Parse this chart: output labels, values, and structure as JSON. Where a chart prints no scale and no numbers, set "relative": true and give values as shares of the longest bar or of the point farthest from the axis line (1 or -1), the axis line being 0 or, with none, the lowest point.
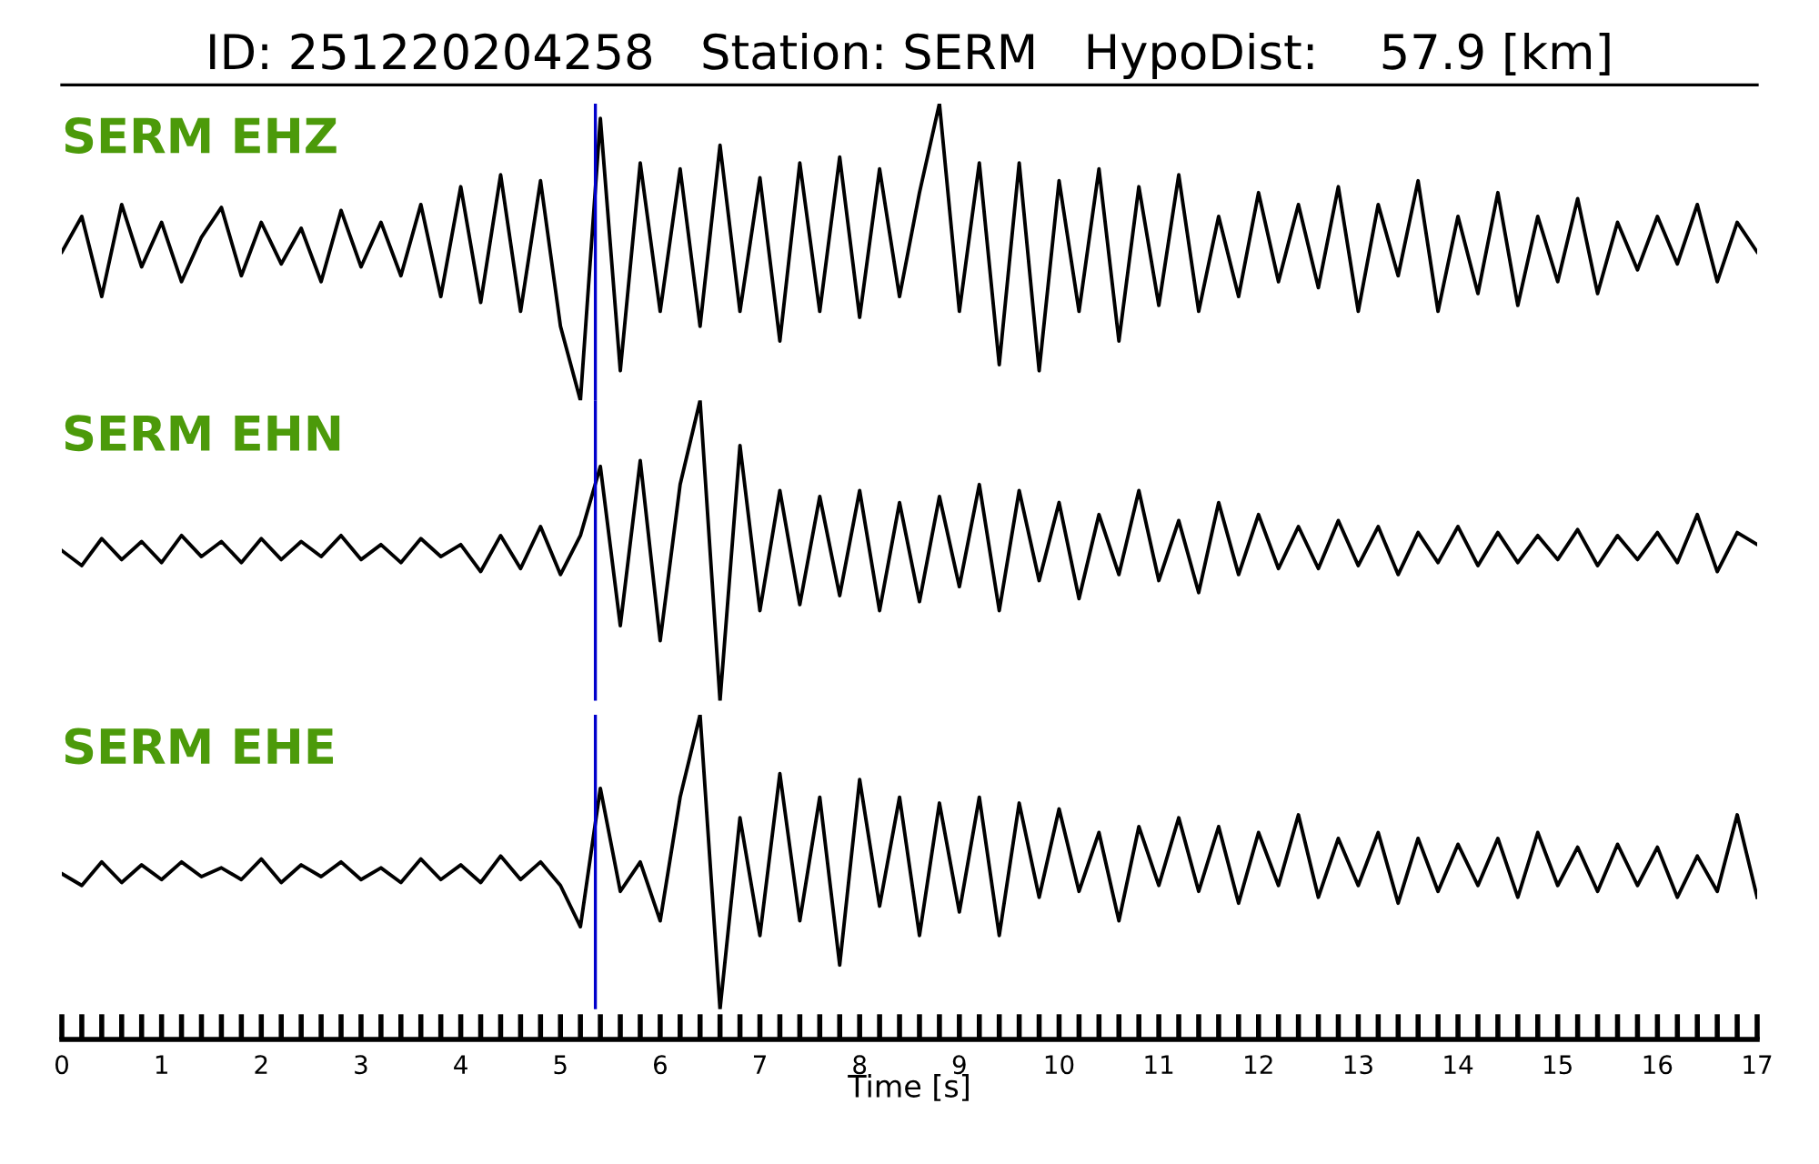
{
  "chart_data": [
    {
      "type": "line",
      "title": "ID: 251220204258   Station: SERM   HypoDist:    57.9 [km]",
      "relative": true,
      "xlim": [
        0,
        17
      ],
      "tick_labels": false,
      "legend": false,
      "grid": false,
      "x": [
        0,
        0.2,
        0.4,
        0.6,
        0.8,
        1,
        1.2,
        1.4,
        1.6,
        1.8,
        2,
        2.2,
        2.4,
        2.6,
        2.8,
        3,
        3.2,
        3.4,
        3.6,
        3.8,
        4,
        4.2,
        4.4,
        4.6,
        4.8,
        5,
        5.2,
        5.4,
        5.6,
        5.8,
        6,
        6.2,
        6.4,
        6.6,
        6.8,
        7,
        7.2,
        7.4,
        7.6,
        7.8,
        8,
        8.2,
        8.4,
        8.6,
        8.8,
        9,
        9.2,
        9.4,
        9.6,
        9.8,
        10,
        10.2,
        10.4,
        10.6,
        10.8,
        11,
        11.2,
        11.4,
        11.6,
        11.8,
        12,
        12.2,
        12.4,
        12.6,
        12.8,
        13,
        13.2,
        13.4,
        13.6,
        13.8,
        14,
        14.2,
        14.4,
        14.6,
        14.8,
        15,
        15.2,
        15.4,
        15.6,
        15.8,
        16,
        16.2,
        16.4,
        16.6,
        16.8,
        17
      ],
      "series": [
        {
          "name": "SERM EHZ",
          "color": "#000000",
          "values": [
            0.5,
            0.62,
            0.35,
            0.66,
            0.45,
            0.6,
            0.4,
            0.55,
            0.65,
            0.42,
            0.6,
            0.46,
            0.58,
            0.4,
            0.64,
            0.45,
            0.6,
            0.42,
            0.66,
            0.35,
            0.72,
            0.33,
            0.76,
            0.3,
            0.74,
            0.25,
            0.0,
            0.95,
            0.1,
            0.8,
            0.3,
            0.78,
            0.25,
            0.86,
            0.3,
            0.75,
            0.2,
            0.8,
            0.3,
            0.82,
            0.28,
            0.78,
            0.35,
            0.7,
            1.0,
            0.3,
            0.8,
            0.12,
            0.8,
            0.1,
            0.74,
            0.3,
            0.78,
            0.2,
            0.72,
            0.32,
            0.76,
            0.3,
            0.62,
            0.35,
            0.7,
            0.4,
            0.66,
            0.38,
            0.72,
            0.3,
            0.66,
            0.42,
            0.74,
            0.3,
            0.62,
            0.36,
            0.7,
            0.32,
            0.62,
            0.4,
            0.68,
            0.36,
            0.6,
            0.44,
            0.62,
            0.46,
            0.66,
            0.4,
            0.6,
            0.5
          ]
        }
      ],
      "ref_lines": [
        {
          "axis": "x",
          "value": 5.35,
          "color": "#0000cc"
        }
      ]
    },
    {
      "type": "line",
      "relative": true,
      "xlim": [
        0,
        17
      ],
      "tick_labels": false,
      "legend": false,
      "grid": false,
      "x": [
        0,
        0.2,
        0.4,
        0.6,
        0.8,
        1,
        1.2,
        1.4,
        1.6,
        1.8,
        2,
        2.2,
        2.4,
        2.6,
        2.8,
        3,
        3.2,
        3.4,
        3.6,
        3.8,
        4,
        4.2,
        4.4,
        4.6,
        4.8,
        5,
        5.2,
        5.4,
        5.6,
        5.8,
        6,
        6.2,
        6.4,
        6.6,
        6.8,
        7,
        7.2,
        7.4,
        7.6,
        7.8,
        8,
        8.2,
        8.4,
        8.6,
        8.8,
        9,
        9.2,
        9.4,
        9.6,
        9.8,
        10,
        10.2,
        10.4,
        10.6,
        10.8,
        11,
        11.2,
        11.4,
        11.6,
        11.8,
        12,
        12.2,
        12.4,
        12.6,
        12.8,
        13,
        13.2,
        13.4,
        13.6,
        13.8,
        14,
        14.2,
        14.4,
        14.6,
        14.8,
        15,
        15.2,
        15.4,
        15.6,
        15.8,
        16,
        16.2,
        16.4,
        16.6,
        16.8,
        17
      ],
      "series": [
        {
          "name": "SERM EHN",
          "color": "#000000",
          "values": [
            0.5,
            0.45,
            0.54,
            0.47,
            0.53,
            0.46,
            0.55,
            0.48,
            0.53,
            0.46,
            0.54,
            0.47,
            0.53,
            0.48,
            0.55,
            0.47,
            0.52,
            0.46,
            0.54,
            0.48,
            0.52,
            0.43,
            0.55,
            0.44,
            0.58,
            0.42,
            0.55,
            0.78,
            0.25,
            0.8,
            0.2,
            0.72,
            1.0,
            0.0,
            0.85,
            0.3,
            0.7,
            0.32,
            0.68,
            0.35,
            0.7,
            0.3,
            0.66,
            0.33,
            0.68,
            0.38,
            0.72,
            0.3,
            0.7,
            0.4,
            0.66,
            0.34,
            0.62,
            0.42,
            0.7,
            0.4,
            0.6,
            0.36,
            0.66,
            0.42,
            0.62,
            0.44,
            0.58,
            0.44,
            0.6,
            0.45,
            0.58,
            0.42,
            0.56,
            0.46,
            0.58,
            0.45,
            0.56,
            0.46,
            0.55,
            0.47,
            0.57,
            0.45,
            0.55,
            0.47,
            0.56,
            0.46,
            0.62,
            0.43,
            0.56,
            0.52
          ]
        }
      ],
      "ref_lines": [
        {
          "axis": "x",
          "value": 5.35,
          "color": "#0000cc"
        }
      ]
    },
    {
      "type": "line",
      "relative": true,
      "xlim": [
        0,
        17
      ],
      "xlabel": "Time [s]",
      "tick_labels": "x",
      "legend": false,
      "grid": false,
      "xticks": [
        0,
        {
          "value": 0.2,
          "label": null
        },
        {
          "value": 0.4,
          "label": null
        },
        {
          "value": 0.6,
          "label": null
        },
        {
          "value": 0.8,
          "label": null
        },
        1,
        {
          "value": 1.2,
          "label": null
        },
        {
          "value": 1.4,
          "label": null
        },
        {
          "value": 1.6,
          "label": null
        },
        {
          "value": 1.8,
          "label": null
        },
        2,
        {
          "value": 2.2,
          "label": null
        },
        {
          "value": 2.4,
          "label": null
        },
        {
          "value": 2.6,
          "label": null
        },
        {
          "value": 2.8,
          "label": null
        },
        3,
        {
          "value": 3.2,
          "label": null
        },
        {
          "value": 3.4,
          "label": null
        },
        {
          "value": 3.6,
          "label": null
        },
        {
          "value": 3.8,
          "label": null
        },
        4,
        {
          "value": 4.2,
          "label": null
        },
        {
          "value": 4.4,
          "label": null
        },
        {
          "value": 4.6,
          "label": null
        },
        {
          "value": 4.8,
          "label": null
        },
        5,
        {
          "value": 5.2,
          "label": null
        },
        {
          "value": 5.4,
          "label": null
        },
        {
          "value": 5.6,
          "label": null
        },
        {
          "value": 5.8,
          "label": null
        },
        6,
        {
          "value": 6.2,
          "label": null
        },
        {
          "value": 6.4,
          "label": null
        },
        {
          "value": 6.6,
          "label": null
        },
        {
          "value": 6.8,
          "label": null
        },
        7,
        {
          "value": 7.2,
          "label": null
        },
        {
          "value": 7.4,
          "label": null
        },
        {
          "value": 7.6,
          "label": null
        },
        {
          "value": 7.8,
          "label": null
        },
        8,
        {
          "value": 8.2,
          "label": null
        },
        {
          "value": 8.4,
          "label": null
        },
        {
          "value": 8.6,
          "label": null
        },
        {
          "value": 8.8,
          "label": null
        },
        9,
        {
          "value": 9.2,
          "label": null
        },
        {
          "value": 9.4,
          "label": null
        },
        {
          "value": 9.6,
          "label": null
        },
        {
          "value": 9.8,
          "label": null
        },
        10,
        {
          "value": 10.2,
          "label": null
        },
        {
          "value": 10.4,
          "label": null
        },
        {
          "value": 10.6,
          "label": null
        },
        {
          "value": 10.8,
          "label": null
        },
        11,
        {
          "value": 11.2,
          "label": null
        },
        {
          "value": 11.4,
          "label": null
        },
        {
          "value": 11.6,
          "label": null
        },
        {
          "value": 11.8,
          "label": null
        },
        12,
        {
          "value": 12.2,
          "label": null
        },
        {
          "value": 12.4,
          "label": null
        },
        {
          "value": 12.6,
          "label": null
        },
        {
          "value": 12.8,
          "label": null
        },
        13,
        {
          "value": 13.2,
          "label": null
        },
        {
          "value": 13.4,
          "label": null
        },
        {
          "value": 13.6,
          "label": null
        },
        {
          "value": 13.8,
          "label": null
        },
        14,
        {
          "value": 14.2,
          "label": null
        },
        {
          "value": 14.4,
          "label": null
        },
        {
          "value": 14.6,
          "label": null
        },
        {
          "value": 14.8,
          "label": null
        },
        15,
        {
          "value": 15.2,
          "label": null
        },
        {
          "value": 15.4,
          "label": null
        },
        {
          "value": 15.6,
          "label": null
        },
        {
          "value": 15.8,
          "label": null
        },
        16,
        {
          "value": 16.2,
          "label": null
        },
        {
          "value": 16.4,
          "label": null
        },
        {
          "value": 16.6,
          "label": null
        },
        {
          "value": 16.8,
          "label": null
        },
        17
      ],
      "x": [
        0,
        0.2,
        0.4,
        0.6,
        0.8,
        1,
        1.2,
        1.4,
        1.6,
        1.8,
        2,
        2.2,
        2.4,
        2.6,
        2.8,
        3,
        3.2,
        3.4,
        3.6,
        3.8,
        4,
        4.2,
        4.4,
        4.6,
        4.8,
        5,
        5.2,
        5.4,
        5.6,
        5.8,
        6,
        6.2,
        6.4,
        6.6,
        6.8,
        7,
        7.2,
        7.4,
        7.6,
        7.8,
        8,
        8.2,
        8.4,
        8.6,
        8.8,
        9,
        9.2,
        9.4,
        9.6,
        9.8,
        10,
        10.2,
        10.4,
        10.6,
        10.8,
        11,
        11.2,
        11.4,
        11.6,
        11.8,
        12,
        12.2,
        12.4,
        12.6,
        12.8,
        13,
        13.2,
        13.4,
        13.6,
        13.8,
        14,
        14.2,
        14.4,
        14.6,
        14.8,
        15,
        15.2,
        15.4,
        15.6,
        15.8,
        16,
        16.2,
        16.4,
        16.6,
        16.8,
        17
      ],
      "series": [
        {
          "name": "SERM EHE",
          "color": "#000000",
          "values": [
            0.46,
            0.42,
            0.5,
            0.43,
            0.49,
            0.44,
            0.5,
            0.45,
            0.48,
            0.44,
            0.51,
            0.43,
            0.49,
            0.45,
            0.5,
            0.44,
            0.48,
            0.43,
            0.51,
            0.44,
            0.49,
            0.43,
            0.52,
            0.44,
            0.5,
            0.42,
            0.28,
            0.75,
            0.4,
            0.5,
            0.3,
            0.72,
            1.0,
            0.0,
            0.65,
            0.25,
            0.8,
            0.3,
            0.72,
            0.15,
            0.78,
            0.35,
            0.72,
            0.25,
            0.7,
            0.33,
            0.72,
            0.25,
            0.7,
            0.38,
            0.68,
            0.4,
            0.6,
            0.3,
            0.62,
            0.42,
            0.65,
            0.4,
            0.62,
            0.36,
            0.6,
            0.42,
            0.66,
            0.38,
            0.58,
            0.42,
            0.6,
            0.36,
            0.58,
            0.4,
            0.56,
            0.42,
            0.58,
            0.38,
            0.6,
            0.42,
            0.55,
            0.4,
            0.56,
            0.42,
            0.55,
            0.38,
            0.52,
            0.4,
            0.66,
            0.38
          ]
        }
      ],
      "ref_lines": [
        {
          "axis": "x",
          "value": 5.35,
          "color": "#0000cc"
        }
      ]
    }
  ]
}
